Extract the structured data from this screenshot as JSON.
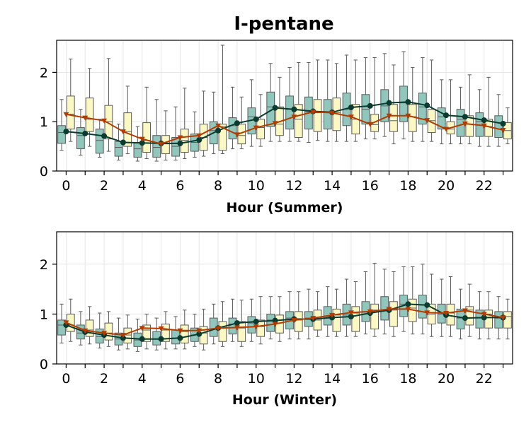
{
  "title": "I-pentane",
  "colors": {
    "box_a": "#8fc7bd",
    "box_b": "#fbf8c4",
    "line_a": "#0b3a2e",
    "line_b": "#b43c00"
  },
  "chart_data": [
    {
      "type": "box",
      "xlabel": "Hour (Summer)",
      "ylabel": "",
      "ylim": [
        0,
        2.65
      ],
      "xlim": [
        -0.5,
        23.5
      ],
      "yticks": [
        0,
        1,
        2
      ],
      "xticks": [
        0,
        2,
        4,
        6,
        8,
        10,
        12,
        14,
        16,
        18,
        20,
        22
      ],
      "grid": true,
      "hours": [
        0,
        1,
        2,
        3,
        4,
        5,
        6,
        7,
        8,
        9,
        10,
        11,
        12,
        13,
        14,
        15,
        16,
        17,
        18,
        19,
        20,
        21,
        22,
        23
      ],
      "series": [
        {
          "boxes": [
            [
              0.42,
              0.56,
              0.78,
              0.92,
              1.45
            ],
            [
              0.32,
              0.45,
              0.72,
              0.88,
              1.25
            ],
            [
              0.28,
              0.36,
              0.62,
              0.85,
              1.05
            ],
            [
              0.22,
              0.3,
              0.48,
              0.6,
              0.95
            ],
            [
              0.2,
              0.28,
              0.45,
              0.58,
              0.9
            ],
            [
              0.2,
              0.28,
              0.48,
              0.72,
              1.45
            ],
            [
              0.22,
              0.3,
              0.5,
              0.68,
              1.3
            ],
            [
              0.28,
              0.4,
              0.58,
              0.75,
              1.2
            ],
            [
              0.35,
              0.55,
              0.82,
              1.0,
              1.6
            ],
            [
              0.45,
              0.65,
              0.92,
              1.08,
              1.7
            ],
            [
              0.5,
              0.75,
              1.1,
              1.28,
              1.85
            ],
            [
              0.6,
              0.9,
              1.3,
              1.6,
              2.18
            ],
            [
              0.6,
              0.85,
              1.25,
              1.52,
              2.1
            ],
            [
              0.58,
              0.85,
              1.2,
              1.5,
              2.2
            ],
            [
              0.6,
              0.85,
              1.2,
              1.45,
              2.25
            ],
            [
              0.6,
              0.92,
              1.25,
              1.58,
              2.35
            ],
            [
              0.65,
              0.95,
              1.25,
              1.55,
              2.3
            ],
            [
              0.7,
              1.0,
              1.32,
              1.65,
              2.38
            ],
            [
              0.65,
              1.0,
              1.38,
              1.72,
              2.42
            ],
            [
              0.6,
              0.95,
              1.3,
              1.58,
              2.3
            ],
            [
              0.55,
              0.85,
              1.1,
              1.28,
              1.85
            ],
            [
              0.55,
              0.7,
              1.05,
              1.25,
              1.7
            ],
            [
              0.5,
              0.7,
              1.0,
              1.18,
              1.65
            ],
            [
              0.5,
              0.68,
              0.98,
              1.12,
              1.55
            ]
          ],
          "median_line": [
            0.8,
            0.76,
            0.71,
            0.58,
            0.57,
            0.56,
            0.56,
            0.63,
            0.82,
            0.97,
            1.05,
            1.28,
            1.25,
            1.21,
            1.19,
            1.29,
            1.32,
            1.38,
            1.4,
            1.33,
            1.13,
            1.1,
            1.03,
            0.96
          ]
        },
        {
          "boxes": [
            [
              0.6,
              0.85,
              1.15,
              1.52,
              2.27
            ],
            [
              0.5,
              0.8,
              1.05,
              1.48,
              2.08
            ],
            [
              0.4,
              0.65,
              1.0,
              1.33,
              2.28
            ],
            [
              0.35,
              0.5,
              0.8,
              1.18,
              1.72
            ],
            [
              0.25,
              0.38,
              0.62,
              0.98,
              1.7
            ],
            [
              0.22,
              0.35,
              0.55,
              0.72,
              1.22
            ],
            [
              0.25,
              0.38,
              0.62,
              0.85,
              1.68
            ],
            [
              0.3,
              0.42,
              0.68,
              0.95,
              1.62
            ],
            [
              0.35,
              0.42,
              0.9,
              0.95,
              2.55
            ],
            [
              0.45,
              0.55,
              0.72,
              0.95,
              1.5
            ],
            [
              0.5,
              0.65,
              0.88,
              1.05,
              1.55
            ],
            [
              0.6,
              0.72,
              0.95,
              1.3,
              1.9
            ],
            [
              0.6,
              0.68,
              1.05,
              1.35,
              2.2
            ],
            [
              0.62,
              0.8,
              1.18,
              1.45,
              2.25
            ],
            [
              0.6,
              0.82,
              1.18,
              1.48,
              2.18
            ],
            [
              0.6,
              0.75,
              1.05,
              1.35,
              2.25
            ],
            [
              0.65,
              0.8,
              0.94,
              1.15,
              2.3
            ],
            [
              0.55,
              0.8,
              1.02,
              1.35,
              2.15
            ],
            [
              0.6,
              0.8,
              1.1,
              1.35,
              2.1
            ],
            [
              0.6,
              0.78,
              1.02,
              1.25,
              2.25
            ],
            [
              0.55,
              0.75,
              0.85,
              1.0,
              1.85
            ],
            [
              0.55,
              0.7,
              0.95,
              1.12,
              1.95
            ],
            [
              0.5,
              0.7,
              0.9,
              1.05,
              1.9
            ],
            [
              0.55,
              0.65,
              0.82,
              0.98,
              1.28
            ]
          ],
          "median_line": [
            1.15,
            1.08,
            1.02,
            0.8,
            0.65,
            0.55,
            0.68,
            0.72,
            0.92,
            0.74,
            0.88,
            0.97,
            1.1,
            1.2,
            1.18,
            1.1,
            0.95,
            1.12,
            1.12,
            1.03,
            0.85,
            0.96,
            0.92,
            0.83
          ]
        }
      ]
    },
    {
      "type": "box",
      "xlabel": "Hour (Winter)",
      "ylabel": "",
      "ylim": [
        0,
        2.65
      ],
      "xlim": [
        -0.5,
        23.5
      ],
      "yticks": [
        0,
        1,
        2
      ],
      "xticks": [
        0,
        2,
        4,
        6,
        8,
        10,
        12,
        14,
        16,
        18,
        20,
        22
      ],
      "grid": true,
      "hours": [
        0,
        1,
        2,
        3,
        4,
        5,
        6,
        7,
        8,
        9,
        10,
        11,
        12,
        13,
        14,
        15,
        16,
        17,
        18,
        19,
        20,
        21,
        22,
        23
      ],
      "series": [
        {
          "boxes": [
            [
              0.42,
              0.58,
              0.78,
              0.88,
              1.2
            ],
            [
              0.38,
              0.5,
              0.62,
              0.78,
              1.05
            ],
            [
              0.32,
              0.42,
              0.55,
              0.7,
              1.02
            ],
            [
              0.28,
              0.38,
              0.5,
              0.62,
              0.92
            ],
            [
              0.25,
              0.35,
              0.48,
              0.62,
              0.9
            ],
            [
              0.28,
              0.38,
              0.5,
              0.65,
              0.92
            ],
            [
              0.3,
              0.4,
              0.52,
              0.68,
              0.95
            ],
            [
              0.35,
              0.45,
              0.58,
              0.72,
              1.0
            ],
            [
              0.4,
              0.55,
              0.7,
              0.92,
              1.2
            ],
            [
              0.45,
              0.6,
              0.8,
              0.92,
              1.3
            ],
            [
              0.45,
              0.62,
              0.82,
              0.95,
              1.3
            ],
            [
              0.5,
              0.65,
              0.88,
              1.0,
              1.35
            ],
            [
              0.5,
              0.7,
              0.92,
              1.05,
              1.45
            ],
            [
              0.5,
              0.75,
              0.92,
              1.05,
              1.5
            ],
            [
              0.55,
              0.78,
              0.95,
              1.15,
              1.55
            ],
            [
              0.55,
              0.78,
              0.98,
              1.2,
              1.7
            ],
            [
              0.6,
              0.85,
              1.05,
              1.25,
              1.85
            ],
            [
              0.6,
              0.88,
              1.08,
              1.35,
              1.9
            ],
            [
              0.65,
              0.95,
              1.2,
              1.38,
              1.95
            ],
            [
              0.6,
              0.92,
              1.18,
              1.38,
              2.0
            ],
            [
              0.55,
              0.82,
              1.0,
              1.2,
              1.7
            ],
            [
              0.5,
              0.7,
              0.92,
              1.1,
              1.5
            ],
            [
              0.5,
              0.72,
              0.92,
              1.08,
              1.45
            ],
            [
              0.5,
              0.72,
              0.92,
              1.05,
              1.35
            ]
          ],
          "median_line": [
            0.78,
            0.64,
            0.58,
            0.52,
            0.5,
            0.5,
            0.52,
            0.6,
            0.72,
            0.82,
            0.85,
            0.87,
            0.9,
            0.9,
            0.93,
            0.95,
            1.02,
            1.08,
            1.2,
            1.18,
            0.98,
            0.92,
            0.93,
            0.93
          ]
        },
        {
          "boxes": [
            [
              0.45,
              0.65,
              0.78,
              1.0,
              1.3
            ],
            [
              0.4,
              0.55,
              0.68,
              0.88,
              1.15
            ],
            [
              0.35,
              0.48,
              0.62,
              0.82,
              1.05
            ],
            [
              0.3,
              0.42,
              0.58,
              0.72,
              0.98
            ],
            [
              0.3,
              0.45,
              0.68,
              0.78,
              1.0
            ],
            [
              0.3,
              0.45,
              0.68,
              0.8,
              1.05
            ],
            [
              0.3,
              0.42,
              0.65,
              0.78,
              1.08
            ],
            [
              0.28,
              0.4,
              0.62,
              0.75,
              1.1
            ],
            [
              0.35,
              0.45,
              0.72,
              0.85,
              1.25
            ],
            [
              0.35,
              0.45,
              0.72,
              0.85,
              1.28
            ],
            [
              0.4,
              0.55,
              0.75,
              0.88,
              1.35
            ],
            [
              0.45,
              0.62,
              0.82,
              0.98,
              1.35
            ],
            [
              0.5,
              0.65,
              0.88,
              1.05,
              1.45
            ],
            [
              0.55,
              0.68,
              0.88,
              1.08,
              1.45
            ],
            [
              0.55,
              0.65,
              0.98,
              1.1,
              1.5
            ],
            [
              0.55,
              0.65,
              1.02,
              1.15,
              1.65
            ],
            [
              0.55,
              0.7,
              1.08,
              1.2,
              2.02
            ],
            [
              0.55,
              0.75,
              1.08,
              1.25,
              1.85
            ],
            [
              0.6,
              0.85,
              1.12,
              1.3,
              1.95
            ],
            [
              0.55,
              0.8,
              1.0,
              1.2,
              1.8
            ],
            [
              0.55,
              0.78,
              1.02,
              1.2,
              1.75
            ],
            [
              0.55,
              0.78,
              1.08,
              1.15,
              1.6
            ],
            [
              0.5,
              0.72,
              1.0,
              1.08,
              1.45
            ],
            [
              0.5,
              0.72,
              0.95,
              1.05,
              1.3
            ]
          ],
          "median_line": [
            0.83,
            0.67,
            0.62,
            0.58,
            0.72,
            0.71,
            0.67,
            0.67,
            0.72,
            0.73,
            0.75,
            0.8,
            0.88,
            0.92,
            0.98,
            1.03,
            1.05,
            1.1,
            1.1,
            1.03,
            1.02,
            1.07,
            1.0,
            0.93
          ]
        }
      ]
    }
  ]
}
